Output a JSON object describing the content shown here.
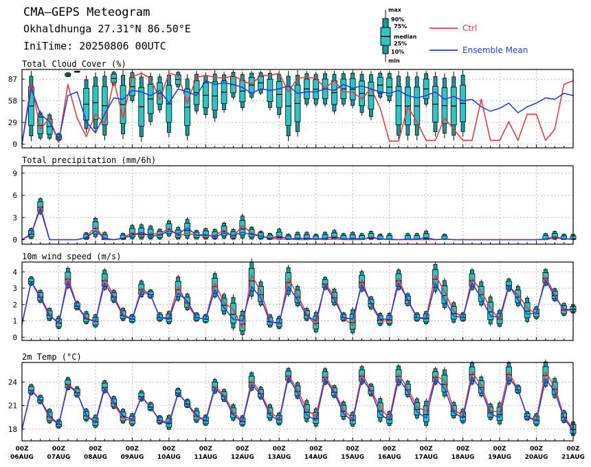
{
  "header": {
    "title": "CMA—GEPS Meteogram",
    "location": "Okhaldhunga 27.31°N 86.50°E",
    "init_time": "IniTime: 20250806 00UTC"
  },
  "legend": {
    "box_labels": [
      "max",
      "90%",
      "75%",
      "median",
      "25%",
      "10%",
      "min"
    ],
    "ctrl_label": "Ctrl",
    "mean_label": "Ensemble Mean",
    "colors": {
      "ctrl": "#e83a3a",
      "mean": "#1f3fe0",
      "box": "#2ec4c4"
    }
  },
  "x_axis": {
    "ticks_hour": [
      "00Z",
      "00Z",
      "00Z",
      "00Z",
      "00Z",
      "00Z",
      "00Z",
      "00Z",
      "00Z",
      "00Z",
      "00Z",
      "00Z",
      "00Z",
      "00Z",
      "00Z",
      "00Z"
    ],
    "ticks_date": [
      "06AUG",
      "07AUG",
      "08AUG",
      "09AUG",
      "10AUG",
      "11AUG",
      "12AUG",
      "13AUG",
      "14AUG",
      "15AUG",
      "16AUG",
      "17AUG",
      "18AUG",
      "19AUG",
      "20AUG",
      "21AUG"
    ],
    "steps_per_day": 4,
    "num_steps": 61
  },
  "chart_data": [
    {
      "type": "line",
      "title": "Total Cloud Cover (%)",
      "ylim": [
        -5,
        100
      ],
      "yticks": [
        0,
        29,
        58,
        87
      ],
      "series": [
        {
          "name": "Ctrl",
          "values": [
            0,
            82,
            20,
            35,
            2,
            80,
            35,
            10,
            40,
            28,
            85,
            35,
            90,
            95,
            88,
            60,
            95,
            92,
            55,
            90,
            92,
            90,
            88,
            92,
            85,
            80,
            92,
            92,
            95,
            70,
            88,
            90,
            88,
            75,
            85,
            70,
            70,
            60,
            75,
            48,
            4,
            4,
            50,
            30,
            5,
            5,
            35,
            20,
            5,
            5,
            60,
            5,
            5,
            30,
            5,
            40,
            40,
            5,
            20,
            80,
            85
          ]
        },
        {
          "name": "Ensemble Mean",
          "values": [
            0,
            75,
            40,
            30,
            5,
            65,
            70,
            30,
            15,
            40,
            62,
            60,
            72,
            70,
            65,
            72,
            55,
            74,
            70,
            65,
            85,
            80,
            82,
            80,
            76,
            68,
            74,
            72,
            74,
            78,
            68,
            70,
            70,
            74,
            72,
            80,
            75,
            78,
            74,
            70,
            68,
            72,
            65,
            62,
            65,
            70,
            60,
            64,
            58,
            60,
            50,
            44,
            48,
            55,
            42,
            50,
            55,
            62,
            60,
            68,
            65
          ]
        }
      ],
      "box_ranges": [
        [
          4,
          98
        ],
        [
          5,
          45
        ],
        [
          5,
          42
        ],
        [
          4,
          15
        ],
        [
          90,
          96
        ],
        [
          96,
          98
        ],
        [
          15,
          92
        ],
        [
          15,
          96
        ],
        [
          5,
          98
        ],
        [
          78,
          98
        ],
        [
          7,
          99
        ],
        [
          55,
          99
        ],
        [
          3,
          97
        ],
        [
          25,
          96
        ],
        [
          42,
          94
        ],
        [
          9,
          99
        ],
        [
          75,
          98
        ],
        [
          5,
          94
        ],
        [
          40,
          98
        ],
        [
          35,
          96
        ],
        [
          30,
          99
        ],
        [
          42,
          97
        ],
        [
          60,
          99
        ],
        [
          45,
          97
        ],
        [
          60,
          98
        ],
        [
          66,
          98
        ],
        [
          45,
          99
        ],
        [
          35,
          98
        ],
        [
          4,
          98
        ],
        [
          10,
          99
        ],
        [
          50,
          98
        ],
        [
          50,
          97
        ],
        [
          50,
          98
        ],
        [
          40,
          98
        ],
        [
          50,
          98
        ],
        [
          48,
          99
        ],
        [
          38,
          98
        ],
        [
          32,
          98
        ],
        [
          60,
          98
        ],
        [
          55,
          98
        ],
        [
          5,
          98
        ],
        [
          5,
          97
        ],
        [
          5,
          97
        ],
        [
          50,
          98
        ],
        [
          10,
          97
        ],
        [
          8,
          95
        ],
        [
          5,
          97
        ],
        [
          10,
          99
        ]
      ]
    },
    {
      "type": "line",
      "title": "Total precipitation (mm/6h)",
      "ylim": [
        -0.6,
        10
      ],
      "yticks": [
        0,
        3,
        6,
        9
      ],
      "series": [
        {
          "name": "Ctrl",
          "values": [
            0,
            0.7,
            4.6,
            0,
            0,
            0,
            0,
            0.3,
            1.8,
            0,
            0,
            0.2,
            1.0,
            0.5,
            0.9,
            0.7,
            1.6,
            0.5,
            0.9,
            0.6,
            0.5,
            0.6,
            1.3,
            0.4,
            1.9,
            0.9,
            0.5,
            0.2,
            0.1,
            0.1,
            0,
            0,
            0.1,
            0,
            0.1,
            0,
            0,
            0,
            0.4,
            0.1,
            0,
            0,
            0,
            0,
            0,
            0,
            0.1,
            0,
            0,
            0,
            0,
            0,
            0,
            0,
            0,
            0,
            0,
            0,
            0.3,
            0.1,
            0.1
          ]
        },
        {
          "name": "Ensemble Mean",
          "values": [
            0,
            0.8,
            4.2,
            0,
            0,
            0,
            0,
            0.3,
            1.2,
            0.2,
            0,
            0.2,
            0.6,
            1.0,
            0.5,
            0.6,
            1.2,
            0.8,
            1.6,
            0.6,
            0.7,
            0.4,
            0.9,
            0.6,
            1.0,
            0.7,
            0.5,
            0.2,
            0.5,
            0.1,
            0.2,
            0.2,
            0.1,
            0.2,
            0.4,
            0.1,
            0.2,
            0.1,
            0.3,
            0.1,
            0.1,
            0,
            0.1,
            0.1,
            0.3,
            0,
            0.1,
            0,
            0,
            0,
            0,
            0,
            0,
            0,
            0,
            0,
            0,
            0.1,
            0.4,
            0.1,
            0.1
          ]
        }
      ]
    },
    {
      "type": "line",
      "title": "10m wind speed (m/s)",
      "ylim": [
        -0.2,
        4.6
      ],
      "yticks": [
        0,
        1,
        2,
        3,
        4
      ],
      "series": [
        {
          "name": "Ctrl",
          "values": [
            0.8,
            3.4,
            2.5,
            1.4,
            0.8,
            3.7,
            1.9,
            1.2,
            0.9,
            3.6,
            2.5,
            1.4,
            1.1,
            3.0,
            2.6,
            1.2,
            1.2,
            3.1,
            2.0,
            1.2,
            1.1,
            3.3,
            2.1,
            1.7,
            0.6,
            3.8,
            2.8,
            1.0,
            0.8,
            3.6,
            2.6,
            1.4,
            0.7,
            3.3,
            2.5,
            1.2,
            0.7,
            3.5,
            2.0,
            1.0,
            1.0,
            3.6,
            2.2,
            1.2,
            1.2,
            3.8,
            2.8,
            1.6,
            1.2,
            3.6,
            2.8,
            1.8,
            1.0,
            3.1,
            2.6,
            1.8,
            1.4,
            3.7,
            2.6,
            1.6,
            1.7
          ]
        },
        {
          "name": "Ensemble Mean",
          "values": [
            0.8,
            3.4,
            2.4,
            1.3,
            0.9,
            3.4,
            1.9,
            1.1,
            1.0,
            3.3,
            2.4,
            1.3,
            1.1,
            2.8,
            2.6,
            1.2,
            1.1,
            2.7,
            2.2,
            1.2,
            1.1,
            2.9,
            1.8,
            1.1,
            1.0,
            3.1,
            2.4,
            0.9,
            0.9,
            3.1,
            2.3,
            1.3,
            1.0,
            3.2,
            2.3,
            1.2,
            1.1,
            3.2,
            2.1,
            1.1,
            1.1,
            3.3,
            2.3,
            1.2,
            1.1,
            3.3,
            2.3,
            1.3,
            1.2,
            3.3,
            2.4,
            1.3,
            1.2,
            3.2,
            2.3,
            1.4,
            1.5,
            3.5,
            2.5,
            1.7,
            1.7
          ]
        }
      ]
    },
    {
      "type": "line",
      "title": "2m Temp (°C)",
      "ylim": [
        16.5,
        26.5
      ],
      "yticks": [
        18,
        21,
        24
      ],
      "series": [
        {
          "name": "Ctrl",
          "values": [
            18.0,
            23.0,
            21.7,
            19.4,
            18.6,
            23.8,
            22.7,
            19.6,
            19.0,
            23.4,
            21.2,
            19.4,
            19.0,
            22.2,
            20.8,
            19.1,
            18.9,
            22.6,
            21.2,
            19.5,
            19.1,
            23.5,
            22.3,
            20.2,
            19.0,
            24.2,
            22.6,
            20.2,
            19.3,
            24.9,
            23.0,
            20.5,
            19.6,
            24.8,
            22.8,
            20.5,
            19.3,
            25.0,
            23.0,
            20.7,
            19.4,
            25.0,
            23.2,
            20.8,
            20.3,
            24.8,
            24.2,
            20.5,
            19.7,
            25.3,
            23.6,
            20.3,
            20.2,
            25.3,
            23.0,
            19.6,
            19.2,
            25.3,
            23.4,
            19.6,
            18.1
          ]
        },
        {
          "name": "Ensemble Mean",
          "values": [
            18.0,
            22.9,
            21.7,
            19.7,
            18.6,
            23.6,
            22.6,
            19.8,
            18.8,
            23.2,
            21.4,
            19.7,
            19.2,
            22.1,
            20.8,
            19.1,
            18.6,
            22.6,
            21.2,
            19.8,
            19.0,
            23.2,
            22.1,
            19.8,
            18.9,
            23.7,
            22.4,
            19.8,
            19.1,
            24.6,
            22.6,
            19.8,
            19.1,
            24.4,
            22.6,
            20.0,
            19.0,
            24.5,
            22.8,
            19.9,
            19.1,
            24.4,
            22.8,
            20.2,
            19.4,
            24.4,
            23.2,
            20.1,
            19.4,
            24.6,
            23.0,
            19.9,
            19.5,
            24.6,
            23.0,
            19.6,
            19.0,
            24.4,
            22.8,
            19.4,
            17.8
          ]
        }
      ]
    }
  ]
}
